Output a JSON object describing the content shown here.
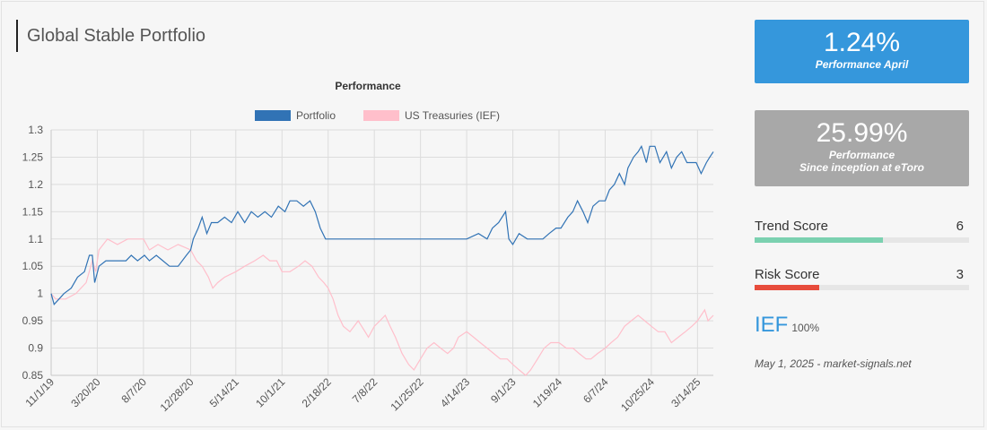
{
  "header": {
    "title": "Global Stable Portfolio"
  },
  "tiles": {
    "april": {
      "value": "1.24%",
      "label": "Performance April",
      "color": "#3597dc"
    },
    "inception": {
      "value": "25.99%",
      "label_line1": "Performance",
      "label_line2": "Since inception at eToro",
      "color": "#a8a8a8"
    }
  },
  "scores": {
    "trend": {
      "label": "Trend Score",
      "value": "6",
      "fraction": 0.6,
      "color": "#7bd1b0"
    },
    "risk": {
      "label": "Risk Score",
      "value": "3",
      "fraction": 0.3,
      "color": "#e74c3c"
    }
  },
  "holding": {
    "ticker": "IEF",
    "weight": "100%"
  },
  "footer": {
    "date": "May 1, 2025 - market-signals.net"
  },
  "chart_data": {
    "type": "line",
    "title": "Performance",
    "legend_position": "top",
    "grid": true,
    "ylim": [
      0.85,
      1.3
    ],
    "yticks": [
      "0.85",
      "0.9",
      "0.95",
      "1",
      "1.05",
      "1.1",
      "1.15",
      "1.2",
      "1.25",
      "1.3"
    ],
    "xlim": [
      "2019-11-01",
      "2025-05-01"
    ],
    "xticks": [
      {
        "date": "2019-11-01",
        "label": "11/1/19"
      },
      {
        "date": "2020-03-20",
        "label": "3/20/20"
      },
      {
        "date": "2020-08-07",
        "label": "8/7/20"
      },
      {
        "date": "2020-12-28",
        "label": "12/28/20"
      },
      {
        "date": "2021-05-14",
        "label": "5/14/21"
      },
      {
        "date": "2021-10-01",
        "label": "10/1/21"
      },
      {
        "date": "2022-02-18",
        "label": "2/18/22"
      },
      {
        "date": "2022-07-08",
        "label": "7/8/22"
      },
      {
        "date": "2022-11-25",
        "label": "11/25/22"
      },
      {
        "date": "2023-04-14",
        "label": "4/14/23"
      },
      {
        "date": "2023-09-01",
        "label": "9/1/23"
      },
      {
        "date": "2024-01-19",
        "label": "1/19/24"
      },
      {
        "date": "2024-06-07",
        "label": "6/7/24"
      },
      {
        "date": "2024-10-25",
        "label": "10/25/24"
      },
      {
        "date": "2025-03-14",
        "label": "3/14/25"
      }
    ],
    "series": [
      {
        "name": "Portfolio",
        "color": "#3173b5",
        "points": [
          [
            "2019-11-01",
            1.0
          ],
          [
            "2019-11-10",
            0.98
          ],
          [
            "2019-11-25",
            0.99
          ],
          [
            "2019-12-10",
            1.0
          ],
          [
            "2020-01-01",
            1.01
          ],
          [
            "2020-01-20",
            1.03
          ],
          [
            "2020-02-10",
            1.04
          ],
          [
            "2020-02-25",
            1.07
          ],
          [
            "2020-03-05",
            1.07
          ],
          [
            "2020-03-12",
            1.02
          ],
          [
            "2020-03-25",
            1.05
          ],
          [
            "2020-04-15",
            1.06
          ],
          [
            "2020-05-15",
            1.06
          ],
          [
            "2020-06-15",
            1.06
          ],
          [
            "2020-07-01",
            1.07
          ],
          [
            "2020-07-20",
            1.06
          ],
          [
            "2020-08-10",
            1.07
          ],
          [
            "2020-08-25",
            1.06
          ],
          [
            "2020-09-15",
            1.07
          ],
          [
            "2020-10-05",
            1.06
          ],
          [
            "2020-10-25",
            1.05
          ],
          [
            "2020-11-20",
            1.05
          ],
          [
            "2020-12-15",
            1.07
          ],
          [
            "2020-12-28",
            1.08
          ],
          [
            "2021-01-05",
            1.1
          ],
          [
            "2021-01-20",
            1.12
          ],
          [
            "2021-02-01",
            1.14
          ],
          [
            "2021-02-15",
            1.11
          ],
          [
            "2021-03-01",
            1.13
          ],
          [
            "2021-03-20",
            1.13
          ],
          [
            "2021-04-10",
            1.14
          ],
          [
            "2021-05-01",
            1.13
          ],
          [
            "2021-05-20",
            1.15
          ],
          [
            "2021-06-10",
            1.13
          ],
          [
            "2021-06-30",
            1.15
          ],
          [
            "2021-07-20",
            1.14
          ],
          [
            "2021-08-10",
            1.15
          ],
          [
            "2021-08-30",
            1.14
          ],
          [
            "2021-09-20",
            1.16
          ],
          [
            "2021-10-10",
            1.15
          ],
          [
            "2021-10-25",
            1.17
          ],
          [
            "2021-11-15",
            1.17
          ],
          [
            "2021-12-05",
            1.16
          ],
          [
            "2021-12-25",
            1.17
          ],
          [
            "2022-01-10",
            1.15
          ],
          [
            "2022-01-25",
            1.12
          ],
          [
            "2022-02-10",
            1.1
          ],
          [
            "2022-02-18",
            1.1
          ],
          [
            "2023-02-01",
            1.1
          ],
          [
            "2023-04-14",
            1.1
          ],
          [
            "2023-05-20",
            1.11
          ],
          [
            "2023-06-15",
            1.1
          ],
          [
            "2023-07-01",
            1.12
          ],
          [
            "2023-07-20",
            1.13
          ],
          [
            "2023-08-10",
            1.15
          ],
          [
            "2023-08-20",
            1.1
          ],
          [
            "2023-09-01",
            1.09
          ],
          [
            "2023-09-20",
            1.11
          ],
          [
            "2023-10-15",
            1.1
          ],
          [
            "2023-11-05",
            1.1
          ],
          [
            "2023-12-01",
            1.1
          ],
          [
            "2023-12-20",
            1.11
          ],
          [
            "2024-01-10",
            1.12
          ],
          [
            "2024-01-25",
            1.12
          ],
          [
            "2024-02-15",
            1.14
          ],
          [
            "2024-03-01",
            1.15
          ],
          [
            "2024-03-15",
            1.17
          ],
          [
            "2024-04-01",
            1.15
          ],
          [
            "2024-04-15",
            1.13
          ],
          [
            "2024-05-01",
            1.16
          ],
          [
            "2024-05-20",
            1.17
          ],
          [
            "2024-06-07",
            1.17
          ],
          [
            "2024-06-20",
            1.19
          ],
          [
            "2024-07-05",
            1.2
          ],
          [
            "2024-07-20",
            1.22
          ],
          [
            "2024-08-05",
            1.2
          ],
          [
            "2024-08-15",
            1.23
          ],
          [
            "2024-09-01",
            1.25
          ],
          [
            "2024-09-15",
            1.26
          ],
          [
            "2024-09-25",
            1.27
          ],
          [
            "2024-10-10",
            1.24
          ],
          [
            "2024-10-20",
            1.27
          ],
          [
            "2024-11-05",
            1.27
          ],
          [
            "2024-11-20",
            1.24
          ],
          [
            "2024-12-10",
            1.26
          ],
          [
            "2024-12-25",
            1.23
          ],
          [
            "2025-01-10",
            1.25
          ],
          [
            "2025-01-25",
            1.26
          ],
          [
            "2025-02-10",
            1.24
          ],
          [
            "2025-02-25",
            1.24
          ],
          [
            "2025-03-10",
            1.24
          ],
          [
            "2025-03-25",
            1.22
          ],
          [
            "2025-04-10",
            1.24
          ],
          [
            "2025-04-20",
            1.25
          ],
          [
            "2025-05-01",
            1.26
          ]
        ]
      },
      {
        "name": "US Treasuries (IEF)",
        "color": "#ffbfcb",
        "points": [
          [
            "2019-11-01",
            1.0
          ],
          [
            "2019-11-15",
            0.99
          ],
          [
            "2019-12-15",
            0.99
          ],
          [
            "2020-01-15",
            1.0
          ],
          [
            "2020-02-15",
            1.02
          ],
          [
            "2020-03-05",
            1.06
          ],
          [
            "2020-03-15",
            1.04
          ],
          [
            "2020-03-25",
            1.08
          ],
          [
            "2020-04-20",
            1.1
          ],
          [
            "2020-05-20",
            1.09
          ],
          [
            "2020-06-20",
            1.1
          ],
          [
            "2020-07-20",
            1.1
          ],
          [
            "2020-08-07",
            1.1
          ],
          [
            "2020-08-25",
            1.08
          ],
          [
            "2020-09-20",
            1.09
          ],
          [
            "2020-10-20",
            1.08
          ],
          [
            "2020-11-20",
            1.09
          ],
          [
            "2020-12-28",
            1.08
          ],
          [
            "2021-01-15",
            1.06
          ],
          [
            "2021-02-01",
            1.05
          ],
          [
            "2021-02-20",
            1.03
          ],
          [
            "2021-03-05",
            1.01
          ],
          [
            "2021-03-20",
            1.02
          ],
          [
            "2021-04-10",
            1.03
          ],
          [
            "2021-05-14",
            1.04
          ],
          [
            "2021-06-10",
            1.05
          ],
          [
            "2021-07-10",
            1.06
          ],
          [
            "2021-08-05",
            1.07
          ],
          [
            "2021-08-25",
            1.06
          ],
          [
            "2021-09-15",
            1.06
          ],
          [
            "2021-10-01",
            1.04
          ],
          [
            "2021-10-25",
            1.04
          ],
          [
            "2021-11-20",
            1.05
          ],
          [
            "2021-12-10",
            1.06
          ],
          [
            "2021-12-31",
            1.05
          ],
          [
            "2022-01-20",
            1.03
          ],
          [
            "2022-02-05",
            1.02
          ],
          [
            "2022-02-18",
            1.01
          ],
          [
            "2022-03-05",
            0.99
          ],
          [
            "2022-03-20",
            0.96
          ],
          [
            "2022-04-05",
            0.94
          ],
          [
            "2022-04-25",
            0.93
          ],
          [
            "2022-05-20",
            0.95
          ],
          [
            "2022-06-10",
            0.93
          ],
          [
            "2022-06-20",
            0.92
          ],
          [
            "2022-07-08",
            0.94
          ],
          [
            "2022-07-25",
            0.95
          ],
          [
            "2022-08-10",
            0.96
          ],
          [
            "2022-08-25",
            0.94
          ],
          [
            "2022-09-10",
            0.92
          ],
          [
            "2022-09-30",
            0.89
          ],
          [
            "2022-10-20",
            0.87
          ],
          [
            "2022-11-05",
            0.86
          ],
          [
            "2022-11-25",
            0.88
          ],
          [
            "2022-12-15",
            0.9
          ],
          [
            "2023-01-05",
            0.91
          ],
          [
            "2023-01-25",
            0.9
          ],
          [
            "2023-02-15",
            0.89
          ],
          [
            "2023-03-05",
            0.9
          ],
          [
            "2023-03-20",
            0.92
          ],
          [
            "2023-04-14",
            0.93
          ],
          [
            "2023-05-05",
            0.92
          ],
          [
            "2023-05-25",
            0.91
          ],
          [
            "2023-06-15",
            0.9
          ],
          [
            "2023-07-05",
            0.89
          ],
          [
            "2023-07-25",
            0.88
          ],
          [
            "2023-08-15",
            0.88
          ],
          [
            "2023-09-01",
            0.87
          ],
          [
            "2023-09-20",
            0.86
          ],
          [
            "2023-10-10",
            0.85
          ],
          [
            "2023-10-25",
            0.86
          ],
          [
            "2023-11-15",
            0.88
          ],
          [
            "2023-12-05",
            0.9
          ],
          [
            "2023-12-25",
            0.91
          ],
          [
            "2024-01-19",
            0.91
          ],
          [
            "2024-02-10",
            0.9
          ],
          [
            "2024-03-01",
            0.9
          ],
          [
            "2024-03-20",
            0.89
          ],
          [
            "2024-04-10",
            0.88
          ],
          [
            "2024-04-25",
            0.88
          ],
          [
            "2024-05-15",
            0.89
          ],
          [
            "2024-06-07",
            0.9
          ],
          [
            "2024-06-25",
            0.91
          ],
          [
            "2024-07-15",
            0.92
          ],
          [
            "2024-08-05",
            0.94
          ],
          [
            "2024-08-25",
            0.95
          ],
          [
            "2024-09-15",
            0.96
          ],
          [
            "2024-10-05",
            0.95
          ],
          [
            "2024-10-25",
            0.94
          ],
          [
            "2024-11-15",
            0.93
          ],
          [
            "2024-12-05",
            0.93
          ],
          [
            "2024-12-25",
            0.91
          ],
          [
            "2025-01-15",
            0.92
          ],
          [
            "2025-02-05",
            0.93
          ],
          [
            "2025-02-25",
            0.94
          ],
          [
            "2025-03-14",
            0.95
          ],
          [
            "2025-03-25",
            0.96
          ],
          [
            "2025-04-05",
            0.97
          ],
          [
            "2025-04-15",
            0.95
          ],
          [
            "2025-05-01",
            0.96
          ]
        ]
      }
    ]
  }
}
